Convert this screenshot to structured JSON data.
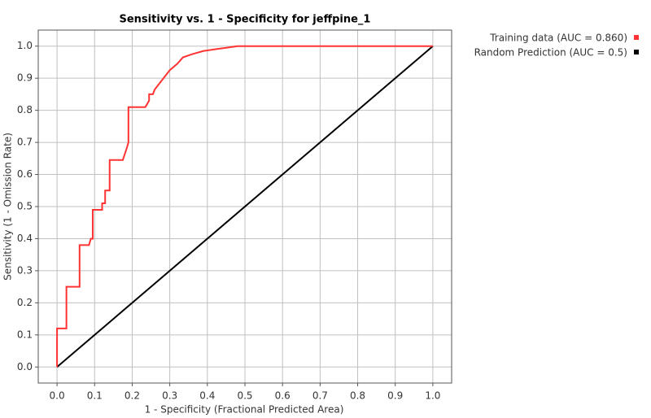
{
  "chart_data": {
    "type": "line",
    "title": "Sensitivity vs. 1 - Specificity for jeffpine_1",
    "x_label": "1 - Specificity  (Fractional Predicted Area)",
    "y_label": "Sensitivity  (1 - Omission Rate)",
    "xlim": [
      -0.05,
      1.05
    ],
    "ylim": [
      -0.05,
      1.05
    ],
    "xticks": [
      {
        "value": 0,
        "label": "0.0"
      },
      0.1,
      0.2,
      0.3,
      0.4,
      0.5,
      0.6,
      0.7,
      0.8,
      0.9,
      {
        "value": 1,
        "label": "1.0"
      }
    ],
    "yticks": [
      {
        "value": 0,
        "label": "0.0"
      },
      0.1,
      0.2,
      0.3,
      0.4,
      0.5,
      0.6,
      0.7,
      0.8,
      0.9,
      {
        "value": 1,
        "label": "1.0"
      }
    ],
    "grid": true,
    "legend": "outside-top-right",
    "series": [
      {
        "name": "Training data (AUC = 0.860)",
        "color": "#ff3333",
        "x": [
          0,
          0,
          0.025,
          0.025,
          0.06,
          0.06,
          0.085,
          0.09,
          0.095,
          0.095,
          0.12,
          0.12,
          0.128,
          0.128,
          0.14,
          0.14,
          0.175,
          0.185,
          0.19,
          0.19,
          0.235,
          0.245,
          0.245,
          0.255,
          0.26,
          0.28,
          0.3,
          0.32,
          0.335,
          0.36,
          0.39,
          0.42,
          0.45,
          0.48,
          1.0
        ],
        "values": [
          0,
          0.12,
          0.12,
          0.25,
          0.25,
          0.38,
          0.38,
          0.4,
          0.4,
          0.49,
          0.49,
          0.51,
          0.51,
          0.55,
          0.55,
          0.645,
          0.645,
          0.68,
          0.7,
          0.81,
          0.81,
          0.83,
          0.85,
          0.85,
          0.865,
          0.895,
          0.925,
          0.945,
          0.965,
          0.975,
          0.985,
          0.99,
          0.995,
          1.0,
          1.0
        ]
      },
      {
        "name": "Random Prediction (AUC = 0.5)",
        "color": "#000000",
        "x": [
          0,
          1
        ],
        "values": [
          0,
          1
        ]
      }
    ]
  }
}
